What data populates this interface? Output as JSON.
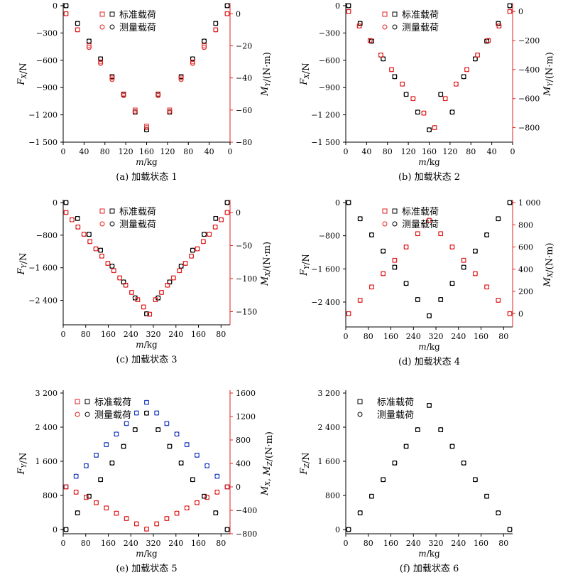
{
  "figure": {
    "legend_standard": "标准载荷",
    "legend_measured": "测量载荷",
    "xlabel": "m/kg",
    "colors": {
      "black": "#000000",
      "red": "#e02020",
      "blue": "#2040c0"
    }
  },
  "chart_data": [
    {
      "id": "a",
      "type": "scatter",
      "caption": "(a) 加载状态 1",
      "xlabel": "m/kg",
      "ylabel_left": "F_X/N",
      "ylabel_right": "M_Y/(N·m)",
      "x_tick_labels": [
        "0",
        "40",
        "80",
        "120",
        "160",
        "120",
        "80",
        "40",
        "0"
      ],
      "left_axis": {
        "min": -1500,
        "max": 0,
        "ticks": [
          0,
          -300,
          -600,
          -900,
          -1200,
          -1500
        ],
        "tick_labels": [
          "0",
          "−300",
          "−600",
          "−900",
          "−1 200",
          "−1 500"
        ]
      },
      "right_axis": {
        "min": -80,
        "max": 5,
        "ticks": [
          0,
          -20,
          -40,
          -60,
          -80
        ],
        "tick_labels": [
          "0",
          "−20",
          "−40",
          "−60",
          "−80"
        ]
      },
      "legend": "top-center",
      "series": [
        {
          "name": "标准载荷",
          "axis": "left",
          "marker": "square",
          "color": "#000000",
          "values": [
            0,
            -195,
            -390,
            -585,
            -780,
            -975,
            -1170,
            -1365,
            -975,
            -1170,
            -780,
            -585,
            -390,
            -195,
            0
          ]
        },
        {
          "name": "测量载荷",
          "axis": "left",
          "marker": "circle",
          "color": "#000000",
          "values": [
            0,
            -195,
            -390,
            -585,
            -780,
            -975,
            -1170,
            -1365,
            -975,
            -1170,
            -780,
            -585,
            -390,
            -195,
            0
          ]
        },
        {
          "name": "标准载荷",
          "axis": "right",
          "marker": "square",
          "color": "#e02020",
          "values": [
            0,
            -10,
            -20,
            -30,
            -40,
            -50,
            -60,
            -70,
            -50,
            -60,
            -40,
            -30,
            -20,
            -10,
            0
          ]
        },
        {
          "name": "测量载荷",
          "axis": "right",
          "marker": "circle",
          "color": "#e02020",
          "values": [
            0,
            -10,
            -21,
            -31,
            -41,
            -51,
            -61,
            -71,
            -51,
            -61,
            -41,
            -31,
            -21,
            -10,
            0
          ]
        }
      ]
    },
    {
      "id": "b",
      "type": "scatter",
      "caption": "(b) 加载状态 2",
      "xlabel": "m/kg",
      "ylabel_left": "F_X/N",
      "ylabel_right": "M_Y/(N·m)",
      "x_tick_labels": [
        "0",
        "40",
        "80",
        "120",
        "160",
        "120",
        "80",
        "40",
        "0"
      ],
      "left_axis": {
        "min": -1500,
        "max": 0,
        "ticks": [
          0,
          -300,
          -600,
          -900,
          -1200,
          -1500
        ],
        "tick_labels": [
          "0",
          "−300",
          "−600",
          "−900",
          "−1 200",
          "−1 500"
        ]
      },
      "right_axis": {
        "min": -900,
        "max": 40,
        "ticks": [
          0,
          -200,
          -400,
          -600,
          -800
        ],
        "tick_labels": [
          "0",
          "−200",
          "−400",
          "−600",
          "−800"
        ]
      },
      "legend": "top-center",
      "series": [
        {
          "name": "标准载荷",
          "axis": "left",
          "marker": "square",
          "color": "#000000",
          "values": [
            0,
            -195,
            -390,
            -585,
            -780,
            -975,
            -1170,
            -1365,
            -975,
            -1170,
            -780,
            -585,
            -390,
            -195,
            0
          ]
        },
        {
          "name": "测量载荷",
          "axis": "left",
          "marker": "circle",
          "color": "#000000",
          "values": [
            0,
            -195,
            -390,
            -585,
            -780,
            -975,
            -1170,
            -1365,
            -975,
            -1170,
            -780,
            -585,
            -390,
            -195,
            0
          ]
        },
        {
          "name": "标准载荷",
          "axis": "right",
          "marker": "square",
          "color": "#e02020",
          "values": [
            0,
            -100,
            -200,
            -300,
            -400,
            -500,
            -600,
            -700,
            -800,
            -600,
            -500,
            -400,
            -300,
            -200,
            -100,
            0
          ]
        },
        {
          "name": "测量载荷",
          "axis": "right",
          "marker": "circle",
          "color": "#e02020",
          "values": [
            0,
            -100,
            -200,
            -300,
            -400,
            -500,
            -600,
            -700,
            -800,
            -600,
            -500,
            -400,
            -300,
            -200,
            -100,
            0
          ]
        }
      ]
    },
    {
      "id": "c",
      "type": "scatter",
      "caption": "(c) 加载状态 3",
      "xlabel": "m/kg",
      "ylabel_left": "F_Y/N",
      "ylabel_right": "M_X/(N·m)",
      "x_tick_labels": [
        "0",
        "80",
        "160",
        "240",
        "320",
        "240",
        "160",
        "80"
      ],
      "left_axis": {
        "min": -3000,
        "max": 0,
        "ticks": [
          0,
          -800,
          -1600,
          -2400
        ],
        "tick_labels": [
          "0",
          "−800",
          "−1 600",
          "−2 400"
        ]
      },
      "right_axis": {
        "min": -170,
        "max": 15,
        "ticks": [
          0,
          -50,
          -100,
          -150
        ],
        "tick_labels": [
          "0",
          "−50",
          "−100",
          "−150"
        ]
      },
      "legend": "top-center",
      "series": [
        {
          "name": "标准载荷",
          "axis": "left",
          "marker": "square",
          "color": "#000000",
          "values": [
            0,
            -390,
            -780,
            -1170,
            -1560,
            -1950,
            -2340,
            -2730,
            -2340,
            -1950,
            -1560,
            -1170,
            -780,
            -390,
            0
          ]
        },
        {
          "name": "测量载荷",
          "axis": "left",
          "marker": "circle",
          "color": "#000000",
          "values": [
            0,
            -390,
            -780,
            -1170,
            -1560,
            -1950,
            -2340,
            -2730,
            -2340,
            -1950,
            -1560,
            -1170,
            -780,
            -390,
            0
          ]
        },
        {
          "name": "标准载荷",
          "axis": "right",
          "marker": "square",
          "color": "#e02020",
          "values": [
            0,
            -11,
            -22,
            -33,
            -44,
            -55,
            -66,
            -77,
            -88,
            -99,
            -110,
            -121,
            -132,
            -143,
            -154,
            -132,
            -121,
            -110,
            -99,
            -88,
            -77,
            -66,
            -55,
            -44,
            -33,
            -22,
            -11,
            0
          ]
        },
        {
          "name": "测量载荷",
          "axis": "right",
          "marker": "circle",
          "color": "#e02020",
          "values": [
            0,
            -11,
            -22,
            -33,
            -44,
            -55,
            -66,
            -77,
            -88,
            -99,
            -110,
            -121,
            -132,
            -143,
            -154,
            -132,
            -121,
            -110,
            -99,
            -88,
            -77,
            -66,
            -55,
            -44,
            -33,
            -22,
            -11,
            0
          ]
        }
      ]
    },
    {
      "id": "d",
      "type": "scatter",
      "caption": "(d) 加载状态 4",
      "xlabel": "m/kg",
      "ylabel_left": "F_Y/N",
      "ylabel_right": "M_X/(N·m)",
      "x_tick_labels": [
        "0",
        "80",
        "160",
        "240",
        "320",
        "240",
        "160",
        "80"
      ],
      "left_axis": {
        "min": -3000,
        "max": 0,
        "ticks": [
          0,
          -800,
          -1600,
          -2400
        ],
        "tick_labels": [
          "0",
          "−800",
          "−1 600",
          "−2 400"
        ]
      },
      "right_axis": {
        "min": -120,
        "max": 1000,
        "ticks": [
          0,
          200,
          400,
          600,
          800,
          1000
        ],
        "tick_labels": [
          "0",
          "200",
          "400",
          "600",
          "800",
          "1 000"
        ]
      },
      "legend": "top-center",
      "series": [
        {
          "name": "标准载荷",
          "axis": "left",
          "marker": "square",
          "color": "#000000",
          "values": [
            0,
            -390,
            -780,
            -1170,
            -1560,
            -1950,
            -2340,
            -2730,
            -2340,
            -1950,
            -1560,
            -1170,
            -780,
            -390,
            0
          ]
        },
        {
          "name": "测量载荷",
          "axis": "left",
          "marker": "circle",
          "color": "#000000",
          "values": [
            0,
            -390,
            -780,
            -1170,
            -1560,
            -1950,
            -2340,
            -2730,
            -2340,
            -1950,
            -1560,
            -1170,
            -780,
            -390,
            0
          ]
        },
        {
          "name": "标准载荷",
          "axis": "right",
          "marker": "square",
          "color": "#e02020",
          "values": [
            0,
            120,
            240,
            360,
            480,
            600,
            720,
            840,
            720,
            600,
            480,
            360,
            240,
            120,
            0
          ]
        },
        {
          "name": "测量载荷",
          "axis": "right",
          "marker": "circle",
          "color": "#e02020",
          "values": [
            0,
            120,
            240,
            360,
            480,
            600,
            720,
            840,
            720,
            600,
            480,
            360,
            240,
            120,
            0
          ]
        }
      ]
    },
    {
      "id": "e",
      "type": "scatter",
      "caption": "(e) 加载状态 5",
      "xlabel": "m/kg",
      "ylabel_left": "F_Y/N",
      "ylabel_right": "M_X, M_Z/(N·m)",
      "x_tick_labels": [
        "0",
        "80",
        "160",
        "240",
        "320",
        "240",
        "160",
        "80"
      ],
      "left_axis": {
        "min": -100,
        "max": 3200,
        "ticks": [
          0,
          800,
          1600,
          2400,
          3200
        ],
        "tick_labels": [
          "0",
          "800",
          "1 600",
          "2 400",
          "3 200"
        ]
      },
      "right_axis": {
        "min": -800,
        "max": 1600,
        "ticks": [
          -800,
          -400,
          0,
          400,
          800,
          1200,
          1600
        ],
        "tick_labels": [
          "−800",
          "−400",
          "0",
          "400",
          "800",
          "1200",
          "1600"
        ]
      },
      "legend": "top-left",
      "series": [
        {
          "name": "标准载荷",
          "axis": "left",
          "marker": "square",
          "color": "#000000",
          "values": [
            0,
            390,
            780,
            1170,
            1560,
            1950,
            2340,
            2730,
            2340,
            1950,
            1560,
            1170,
            780,
            390,
            0
          ]
        },
        {
          "name": "测量载荷",
          "axis": "left",
          "marker": "circle",
          "color": "#000000",
          "values": [
            0,
            390,
            780,
            1170,
            1560,
            1950,
            2340,
            2730,
            2340,
            1950,
            1560,
            1170,
            780,
            390,
            0
          ]
        },
        {
          "name": "标准载荷",
          "axis": "right",
          "marker": "square",
          "color": "#2040c0",
          "values": [
            0,
            180,
            360,
            540,
            720,
            900,
            1080,
            1260,
            1440,
            1260,
            1080,
            900,
            720,
            540,
            360,
            180,
            0
          ]
        },
        {
          "name": "测量载荷",
          "axis": "right",
          "marker": "circle",
          "color": "#2040c0",
          "values": [
            0,
            180,
            360,
            540,
            720,
            900,
            1080,
            1260,
            1440,
            1260,
            1080,
            900,
            720,
            540,
            360,
            180,
            0
          ]
        },
        {
          "name": "标准载荷",
          "axis": "right",
          "marker": "square",
          "color": "#e02020",
          "values": [
            0,
            -90,
            -180,
            -270,
            -360,
            -450,
            -540,
            -630,
            -720,
            -630,
            -540,
            -450,
            -360,
            -270,
            -180,
            -90,
            0
          ]
        },
        {
          "name": "测量载荷",
          "axis": "right",
          "marker": "circle",
          "color": "#e02020",
          "values": [
            0,
            -90,
            -180,
            -270,
            -360,
            -450,
            -540,
            -630,
            -720,
            -630,
            -540,
            -450,
            -360,
            -270,
            -180,
            -90,
            0
          ]
        }
      ]
    },
    {
      "id": "f",
      "type": "scatter",
      "caption": "(f) 加载状态 6",
      "xlabel": "m/kg",
      "ylabel_left": "F_Z/N",
      "ylabel_right": "",
      "x_tick_labels": [
        "0",
        "80",
        "160",
        "240",
        "320",
        "240",
        "160",
        "80"
      ],
      "left_axis": {
        "min": -100,
        "max": 3200,
        "ticks": [
          0,
          800,
          1600,
          2400,
          3200
        ],
        "tick_labels": [
          "0",
          "800",
          "1 600",
          "2 400",
          "3 200"
        ]
      },
      "legend": "top-left",
      "series": [
        {
          "name": "标准载荷",
          "axis": "left",
          "marker": "square",
          "color": "#000000",
          "values": [
            0,
            390,
            780,
            1170,
            1560,
            1950,
            2340,
            2910,
            2340,
            1950,
            1560,
            1170,
            780,
            390,
            0
          ]
        },
        {
          "name": "测量载荷",
          "axis": "left",
          "marker": "circle",
          "color": "#000000",
          "values": [
            0,
            390,
            780,
            1170,
            1560,
            1950,
            2340,
            2910,
            2340,
            1950,
            1560,
            1170,
            780,
            390,
            0
          ]
        }
      ]
    }
  ]
}
